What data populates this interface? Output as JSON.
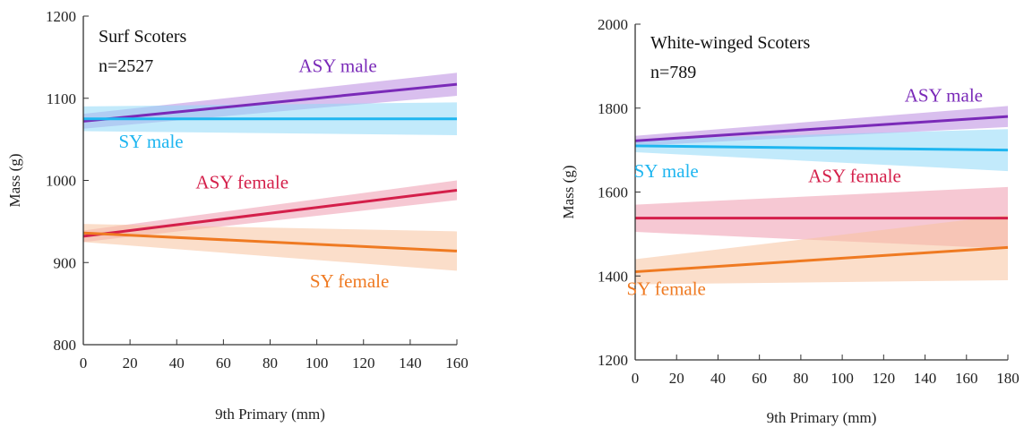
{
  "chart_data": [
    {
      "type": "line",
      "title": "Surf Scoters",
      "subtitle": "n=2527",
      "xlabel": "9th Primary (mm)",
      "ylabel": "Mass (g)",
      "xlim": [
        0,
        160
      ],
      "ylim": [
        800,
        1200
      ],
      "xticks": [
        "0",
        "20",
        "40",
        "60",
        "80",
        "100",
        "120",
        "140",
        "160"
      ],
      "yticks": [
        "800",
        "900",
        "1000",
        "1100",
        "1200"
      ],
      "grid": false,
      "series": [
        {
          "name": "ASY male",
          "color": "#7a2ab8",
          "band_color": "#b98be0",
          "x": [
            0,
            160
          ],
          "y": [
            1072,
            1117
          ],
          "lower": [
            1063,
            1103
          ],
          "upper": [
            1081,
            1131
          ]
        },
        {
          "name": "SY male",
          "color": "#1fb6f0",
          "band_color": "#8fd9f7",
          "x": [
            0,
            160
          ],
          "y": [
            1075,
            1075
          ],
          "lower": [
            1060,
            1055
          ],
          "upper": [
            1090,
            1095
          ]
        },
        {
          "name": "ASY female",
          "color": "#d41f4a",
          "band_color": "#ee9aae",
          "x": [
            0,
            160
          ],
          "y": [
            932,
            988
          ],
          "lower": [
            925,
            976
          ],
          "upper": [
            939,
            1000
          ]
        },
        {
          "name": "SY female",
          "color": "#ef7a22",
          "band_color": "#f7c39e",
          "x": [
            0,
            160
          ],
          "y": [
            936,
            914
          ],
          "lower": [
            925,
            890
          ],
          "upper": [
            947,
            938
          ]
        }
      ],
      "label_positions": [
        {
          "series": "ASY male",
          "x": 109,
          "y": 1132
        },
        {
          "series": "SY male",
          "x": 29,
          "y": 1040
        },
        {
          "series": "ASY female",
          "x": 68,
          "y": 990
        },
        {
          "series": "SY female",
          "x": 114,
          "y": 870
        }
      ]
    },
    {
      "type": "line",
      "title": "White-winged Scoters",
      "subtitle": "n=789",
      "xlabel": "9th Primary (mm)",
      "ylabel": "Mass (g)",
      "xlim": [
        0,
        180
      ],
      "ylim": [
        1200,
        2000
      ],
      "xticks": [
        "0",
        "20",
        "40",
        "60",
        "80",
        "100",
        "120",
        "140",
        "160",
        "180"
      ],
      "yticks": [
        "1200",
        "1400",
        "1600",
        "1800",
        "2000"
      ],
      "grid": false,
      "series": [
        {
          "name": "ASY male",
          "color": "#7a2ab8",
          "band_color": "#b98be0",
          "x": [
            0,
            180
          ],
          "y": [
            1722,
            1780
          ],
          "lower": [
            1710,
            1755
          ],
          "upper": [
            1734,
            1805
          ]
        },
        {
          "name": "SY male",
          "color": "#1fb6f0",
          "band_color": "#8fd9f7",
          "x": [
            0,
            180
          ],
          "y": [
            1710,
            1700
          ],
          "lower": [
            1695,
            1650
          ],
          "upper": [
            1725,
            1750
          ]
        },
        {
          "name": "ASY female",
          "color": "#d41f4a",
          "band_color": "#ee9aae",
          "x": [
            0,
            180
          ],
          "y": [
            1538,
            1538
          ],
          "lower": [
            1505,
            1465
          ],
          "upper": [
            1570,
            1612
          ]
        },
        {
          "name": "SY female",
          "color": "#ef7a22",
          "band_color": "#f7c39e",
          "x": [
            0,
            180
          ],
          "y": [
            1410,
            1468
          ],
          "lower": [
            1380,
            1390
          ],
          "upper": [
            1440,
            1545
          ]
        }
      ],
      "label_positions": [
        {
          "series": "ASY male",
          "x": 149,
          "y": 1815
        },
        {
          "series": "SY male",
          "x": 15,
          "y": 1635
        },
        {
          "series": "ASY female",
          "x": 106,
          "y": 1623
        },
        {
          "series": "SY female",
          "x": 15,
          "y": 1355
        }
      ]
    }
  ]
}
